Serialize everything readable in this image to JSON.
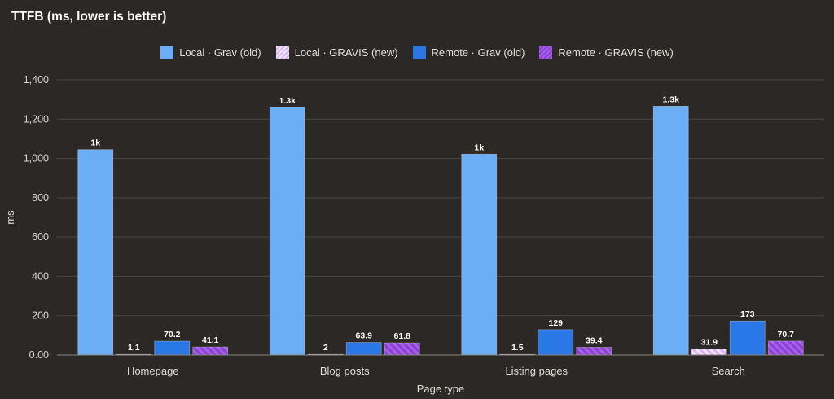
{
  "title": "TTFB (ms, lower is better)",
  "colors": {
    "local_old": "#6baef5",
    "local_new_fill": "#d8b4f5",
    "local_new_stripe": "#f3e6fd",
    "remote_old": "#2a77e8",
    "remote_new_fill": "#8b3fd6",
    "remote_new_stripe": "#a661e8",
    "grid": "#4a4642",
    "axis": "#8a8580"
  },
  "chart_data": {
    "type": "bar",
    "title": "TTFB (ms, lower is better)",
    "xlabel": "Page type",
    "ylabel": "ms",
    "ylim": [
      0,
      1400
    ],
    "yticks": [
      0,
      200,
      400,
      600,
      800,
      1000,
      1200,
      1400
    ],
    "ytick_labels": [
      "0.00",
      "200",
      "400",
      "600",
      "800",
      "1,000",
      "1,200",
      "1,400"
    ],
    "grid": true,
    "legend_position": "top-center",
    "categories": [
      "Homepage",
      "Blog posts",
      "Listing pages",
      "Search"
    ],
    "series": [
      {
        "name": "Local · Grav (old)",
        "key": "local_old",
        "pattern": "solid",
        "values": [
          1045,
          1260,
          1022,
          1266
        ],
        "labels": [
          "1k",
          "1.3k",
          "1k",
          "1.3k"
        ]
      },
      {
        "name": "Local · GRAVIS (new)",
        "key": "local_new",
        "pattern": "striped",
        "values": [
          1.1,
          2,
          1.5,
          31.9
        ],
        "labels": [
          "1.1",
          "2",
          "1.5",
          "31.9"
        ]
      },
      {
        "name": "Remote · Grav (old)",
        "key": "remote_old",
        "pattern": "solid",
        "values": [
          70.2,
          63.9,
          129,
          173
        ],
        "labels": [
          "70.2",
          "63.9",
          "129",
          "173"
        ]
      },
      {
        "name": "Remote · GRAVIS (new)",
        "key": "remote_new",
        "pattern": "striped",
        "values": [
          41.1,
          61.8,
          39.4,
          70.7
        ],
        "labels": [
          "41.1",
          "61.8",
          "39.4",
          "70.7"
        ]
      }
    ]
  }
}
